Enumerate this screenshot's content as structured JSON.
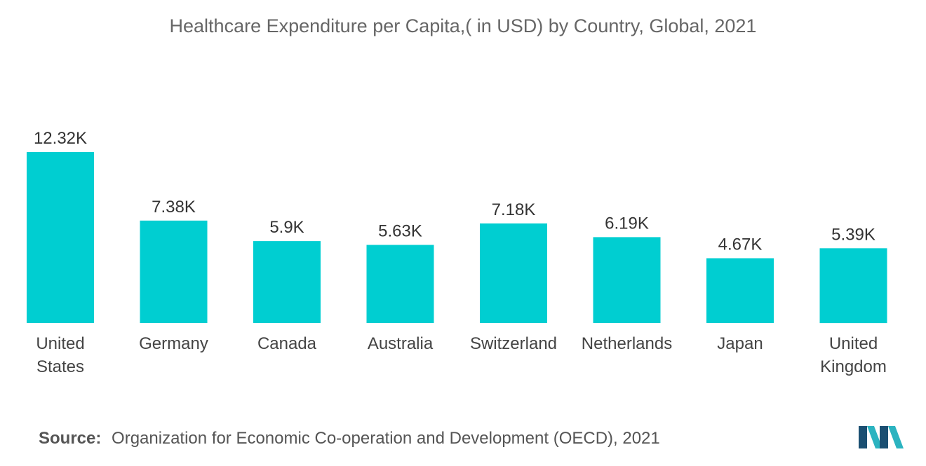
{
  "chart_data": {
    "type": "bar",
    "title": "Healthcare Expenditure per Capita,( in USD) by Country, Global, 2021",
    "categories": [
      "United States",
      "Germany",
      "Canada",
      "Australia",
      "Switzerland",
      "Netherlands",
      "Japan",
      "United Kingdom"
    ],
    "values": [
      12320,
      7380,
      5900,
      5630,
      7180,
      6190,
      4670,
      5390
    ],
    "data_labels": [
      "12.32K",
      "7.38K",
      "5.9K",
      "5.63K",
      "7.18K",
      "6.19K",
      "4.67K",
      "5.39K"
    ],
    "xlabel": "",
    "ylabel": "",
    "ylim": [
      0,
      12320
    ],
    "grid": false,
    "legend": "none",
    "bar_color": "#00CED1"
  },
  "source": {
    "label": "Source:",
    "text": "Organization for Economic Co-operation and Development (OECD), 2021"
  },
  "logo": {
    "icon": "mordor-intelligence-logo-icon",
    "colors": [
      "#1B4F72",
      "#2BB3C0"
    ]
  }
}
